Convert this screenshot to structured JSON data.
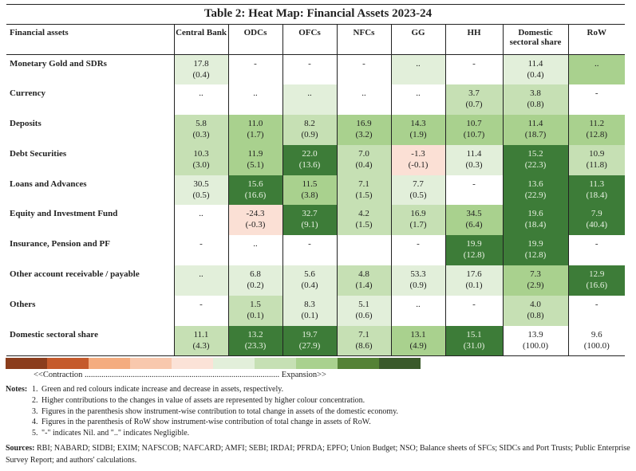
{
  "title": "Table 2: Heat Map: Financial Assets 2023-24",
  "columns": [
    "Financial assets",
    "Central Bank",
    "ODCs",
    "OFCs",
    "NFCs",
    "GG",
    "HH",
    "Domestic sectoral share",
    "RoW"
  ],
  "colors": {
    "w": "#ffffff",
    "g1": "#e2efda",
    "g2": "#c6e0b4",
    "g3": "#a9d18e",
    "g4": "#3d7c38",
    "r1": "#fbe0d5"
  },
  "rows": [
    {
      "label": "Monetary Gold and SDRs",
      "cells": [
        {
          "v": "17.8",
          "p": "(0.4)",
          "c": "g1"
        },
        {
          "v": "-",
          "c": "w"
        },
        {
          "v": "-",
          "c": "w"
        },
        {
          "v": "-",
          "c": "w"
        },
        {
          "v": "..",
          "c": "g1"
        },
        {
          "v": "-",
          "c": "w"
        },
        {
          "v": "11.4",
          "p": "(0.4)",
          "c": "g1"
        },
        {
          "v": "..",
          "c": "g3"
        }
      ]
    },
    {
      "label": "Currency",
      "cells": [
        {
          "v": "..",
          "c": "w"
        },
        {
          "v": "..",
          "c": "w"
        },
        {
          "v": "..",
          "c": "g1"
        },
        {
          "v": "..",
          "c": "w"
        },
        {
          "v": "..",
          "c": "w"
        },
        {
          "v": "3.7",
          "p": "(0.7)",
          "c": "g2"
        },
        {
          "v": "3.8",
          "p": "(0.8)",
          "c": "g2"
        },
        {
          "v": "-",
          "c": "w"
        }
      ]
    },
    {
      "label": "Deposits",
      "cells": [
        {
          "v": "5.8",
          "p": "(0.3)",
          "c": "g2"
        },
        {
          "v": "11.0",
          "p": "(1.7)",
          "c": "g3"
        },
        {
          "v": "8.2",
          "p": "(0.9)",
          "c": "g2"
        },
        {
          "v": "16.9",
          "p": "(3.2)",
          "c": "g3"
        },
        {
          "v": "14.3",
          "p": "(1.9)",
          "c": "g3"
        },
        {
          "v": "10.7",
          "p": "(10.7)",
          "c": "g3"
        },
        {
          "v": "11.4",
          "p": "(18.7)",
          "c": "g3"
        },
        {
          "v": "11.2",
          "p": "(12.8)",
          "c": "g3"
        }
      ]
    },
    {
      "label": "Debt Securities",
      "cells": [
        {
          "v": "10.3",
          "p": "(3.0)",
          "c": "g2"
        },
        {
          "v": "11.9",
          "p": "(5.1)",
          "c": "g3"
        },
        {
          "v": "22.0",
          "p": "(13.6)",
          "c": "g4"
        },
        {
          "v": "7.0",
          "p": "(0.4)",
          "c": "g2"
        },
        {
          "v": "-1.3",
          "p": "(-0.1)",
          "c": "r1"
        },
        {
          "v": "11.4",
          "p": "(0.3)",
          "c": "g1"
        },
        {
          "v": "15.2",
          "p": "(22.3)",
          "c": "g4"
        },
        {
          "v": "10.9",
          "p": "(11.8)",
          "c": "g2"
        }
      ]
    },
    {
      "label": "Loans and Advances",
      "cells": [
        {
          "v": "30.5",
          "p": "(0.5)",
          "c": "g1"
        },
        {
          "v": "15.6",
          "p": "(16.6)",
          "c": "g4"
        },
        {
          "v": "11.5",
          "p": "(3.8)",
          "c": "g3"
        },
        {
          "v": "7.1",
          "p": "(1.5)",
          "c": "g2"
        },
        {
          "v": "7.7",
          "p": "(0.5)",
          "c": "g1"
        },
        {
          "v": "-",
          "c": "w"
        },
        {
          "v": "13.6",
          "p": "(22.9)",
          "c": "g4"
        },
        {
          "v": "11.3",
          "p": "(18.4)",
          "c": "g4"
        }
      ]
    },
    {
      "label": "Equity and Investment Fund",
      "cells": [
        {
          "v": "..",
          "c": "w"
        },
        {
          "v": "-24.3",
          "p": "(-0.3)",
          "c": "r1"
        },
        {
          "v": "32.7",
          "p": "(9.1)",
          "c": "g4"
        },
        {
          "v": "4.2",
          "p": "(1.5)",
          "c": "g2"
        },
        {
          "v": "16.9",
          "p": "(1.7)",
          "c": "g2"
        },
        {
          "v": "34.5",
          "p": "(6.4)",
          "c": "g3"
        },
        {
          "v": "19.6",
          "p": "(18.4)",
          "c": "g4"
        },
        {
          "v": "7.9",
          "p": "(40.4)",
          "c": "g4"
        }
      ]
    },
    {
      "label": "Insurance, Pension and PF",
      "cells": [
        {
          "v": "-",
          "c": "w"
        },
        {
          "v": "..",
          "c": "w"
        },
        {
          "v": "-",
          "c": "w"
        },
        {
          "v": "",
          "c": "w"
        },
        {
          "v": "-",
          "c": "w"
        },
        {
          "v": "19.9",
          "p": "(12.8)",
          "c": "g4"
        },
        {
          "v": "19.9",
          "p": "(12.8)",
          "c": "g4"
        },
        {
          "v": "-",
          "c": "w"
        }
      ]
    },
    {
      "label": "Other account receivable / payable",
      "cells": [
        {
          "v": "..",
          "c": "g1"
        },
        {
          "v": "6.8",
          "p": "(0.2)",
          "c": "g1"
        },
        {
          "v": "5.6",
          "p": "(0.4)",
          "c": "g1"
        },
        {
          "v": "4.8",
          "p": "(1.4)",
          "c": "g2"
        },
        {
          "v": "53.3",
          "p": "(0.9)",
          "c": "g1"
        },
        {
          "v": "17.6",
          "p": "(0.1)",
          "c": "g1"
        },
        {
          "v": "7.3",
          "p": "(2.9)",
          "c": "g3"
        },
        {
          "v": "12.9",
          "p": "(16.6)",
          "c": "g4"
        }
      ]
    },
    {
      "label": "Others",
      "cells": [
        {
          "v": "-",
          "c": "w"
        },
        {
          "v": "1.5",
          "p": "(0.1)",
          "c": "g2"
        },
        {
          "v": "8.3",
          "p": "(0.1)",
          "c": "g1"
        },
        {
          "v": "5.1",
          "p": "(0.6)",
          "c": "g1"
        },
        {
          "v": "..",
          "c": "w"
        },
        {
          "v": "-",
          "c": "w"
        },
        {
          "v": "4.0",
          "p": "(0.8)",
          "c": "g2"
        },
        {
          "v": "-",
          "c": "w"
        }
      ]
    },
    {
      "label": "Domestic sectoral share",
      "cells": [
        {
          "v": "11.1",
          "p": "(4.3)",
          "c": "g2"
        },
        {
          "v": "13.2",
          "p": "(23.3)",
          "c": "g4"
        },
        {
          "v": "19.7",
          "p": "(27.9)",
          "c": "g4"
        },
        {
          "v": "7.1",
          "p": "(8.6)",
          "c": "g2"
        },
        {
          "v": "13.1",
          "p": "(4.9)",
          "c": "g3"
        },
        {
          "v": "15.1",
          "p": "(31.0)",
          "c": "g4"
        },
        {
          "v": "13.9",
          "p": "(100.0)",
          "c": "w"
        },
        {
          "v": "9.6",
          "p": "(100.0)",
          "c": "w"
        }
      ]
    }
  ],
  "legend": {
    "colors": [
      "#8b3d1c",
      "#c55a2b",
      "#f4ac7f",
      "#f8c8ad",
      "#fbe2d7",
      "#e2efda",
      "#c6e0b4",
      "#a9d18e",
      "#548235",
      "#3a5a2a"
    ],
    "scale_text": "<<Contraction ............................................................................................. Expansion>>"
  },
  "notes_label": "Notes:",
  "notes": [
    "Green and red colours indicate increase and decrease in assets, respectively.",
    "Higher contributions to the changes in value of assets are represented by higher colour concentration.",
    "Figures in the parenthesis show instrument-wise contribution to total change in assets of the domestic economy.",
    "Figures in the parenthesis of RoW show instrument-wise contribution of total change in assets of RoW.",
    "\"-\" indicates Nil. and \"..\" indicates Negligible."
  ],
  "sources_label": "Sources:",
  "sources": "RBI; NABARD; SIDBI; EXIM; NAFSCOB; NAFCARD; AMFI; SEBI; IRDAI; PFRDA; EPFO; Union Budget; NSO; Balance sheets of SFCs; SIDCs and Port Trusts; Public Enterprise Survey Report; and authors' calculations."
}
